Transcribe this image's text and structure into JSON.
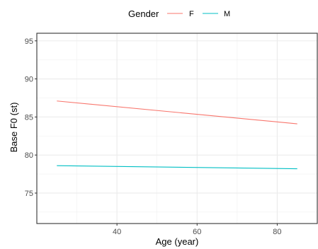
{
  "chart_data": {
    "type": "line",
    "xlabel": "Age (year)",
    "ylabel": "Base F0 (st)",
    "xlim": [
      20,
      90
    ],
    "ylim": [
      71,
      96
    ],
    "x_ticks": [
      40,
      60,
      80
    ],
    "y_ticks": [
      75,
      80,
      85,
      90,
      95
    ],
    "grid": true,
    "legend": {
      "title": "Gender",
      "position": "top"
    },
    "series": [
      {
        "name": "F",
        "color": "#F8766D",
        "x": [
          25,
          85
        ],
        "y": [
          87.1,
          84.1
        ]
      },
      {
        "name": "M",
        "color": "#00BFC4",
        "x": [
          25,
          85
        ],
        "y": [
          78.6,
          78.2
        ]
      }
    ]
  }
}
